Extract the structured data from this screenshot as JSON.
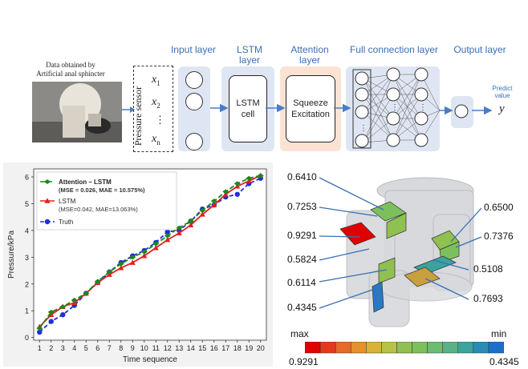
{
  "top": {
    "photo_caption": "Data obtained by\nArtificial anal sphincter",
    "sensor_label": "Pressure sensor",
    "layers": [
      {
        "name": "Input layer"
      },
      {
        "name": "LSTM\nlayer"
      },
      {
        "name": "Attention\nlayer"
      },
      {
        "name": "Full connection layer"
      },
      {
        "name": "Output layer"
      }
    ],
    "lstm_cell": "LSTM\ncell",
    "attention_cell": "Squeeze\nExcitation",
    "inputs": [
      "x",
      "x",
      "x"
    ],
    "input_subscripts": [
      "1",
      "2",
      "n"
    ],
    "vdots": "⋮",
    "predict": "Predict\nvalue",
    "output_symbol": "y",
    "colors": {
      "accent_title": "#3a6fb5",
      "panel_blue": "#dfe6f3",
      "panel_peach": "#fbe3d4"
    }
  },
  "chart_data": {
    "type": "line",
    "xlabel": "Time sequence",
    "ylabel": "Pressure/kPa",
    "x": [
      1,
      2,
      3,
      4,
      5,
      6,
      7,
      8,
      9,
      10,
      11,
      12,
      13,
      14,
      15,
      16,
      17,
      18,
      19,
      20
    ],
    "xlim": [
      0.5,
      20.5
    ],
    "ylim": [
      -0.1,
      6.3
    ],
    "yticks": [
      0,
      1,
      2,
      3,
      4,
      5,
      6
    ],
    "series": [
      {
        "name": "Attention – LSTM",
        "subtitle": "(MSE = 0.026, MAE = 10.575%)",
        "color": "#1a8a1a",
        "dash": "6,3",
        "marker": "diamond",
        "values": [
          0.35,
          0.95,
          1.15,
          1.4,
          1.65,
          2.1,
          2.45,
          2.75,
          3.0,
          3.2,
          3.5,
          3.8,
          4.1,
          4.35,
          4.75,
          5.1,
          5.45,
          5.75,
          5.95,
          6.05
        ]
      },
      {
        "name": "LSTM",
        "subtitle": "(MSE=0.042, MAE=13.063%)",
        "color": "#e02020",
        "dash": "",
        "marker": "triangle",
        "values": [
          0.4,
          0.85,
          1.15,
          1.3,
          1.65,
          2.05,
          2.35,
          2.6,
          2.8,
          3.05,
          3.35,
          3.65,
          3.9,
          4.2,
          4.6,
          4.95,
          5.35,
          5.65,
          5.85,
          6.05
        ]
      },
      {
        "name": "Truth",
        "subtitle": "",
        "color": "#1f2fd8",
        "dash": "5,3",
        "marker": "circle",
        "values": [
          0.2,
          0.6,
          0.85,
          1.2,
          1.65,
          2.05,
          2.45,
          2.8,
          3.05,
          3.25,
          3.55,
          3.95,
          4.0,
          4.35,
          4.8,
          4.95,
          5.25,
          5.35,
          5.75,
          5.95
        ]
      }
    ],
    "legend_placement": "top-left",
    "grid": false
  },
  "heatmap": {
    "labels_left": [
      "0.6410",
      "0.7253",
      "0.9291",
      "0.5824",
      "0.6114",
      "0.4345"
    ],
    "labels_right": [
      "0.6500",
      "0.7376",
      "0.5108",
      "0.7693"
    ],
    "scale_max_word": "max",
    "scale_min_word": "min",
    "scale_max_value": "0.9291",
    "scale_min_value": "0.4345",
    "scale_colors": [
      "#e00000",
      "#e23a1a",
      "#e66a2a",
      "#e6902e",
      "#d8b23a",
      "#b8c246",
      "#90c050",
      "#7cc05e",
      "#6cbc72",
      "#58b288",
      "#3ca29e",
      "#2a8cb6",
      "#1a70c8"
    ]
  }
}
